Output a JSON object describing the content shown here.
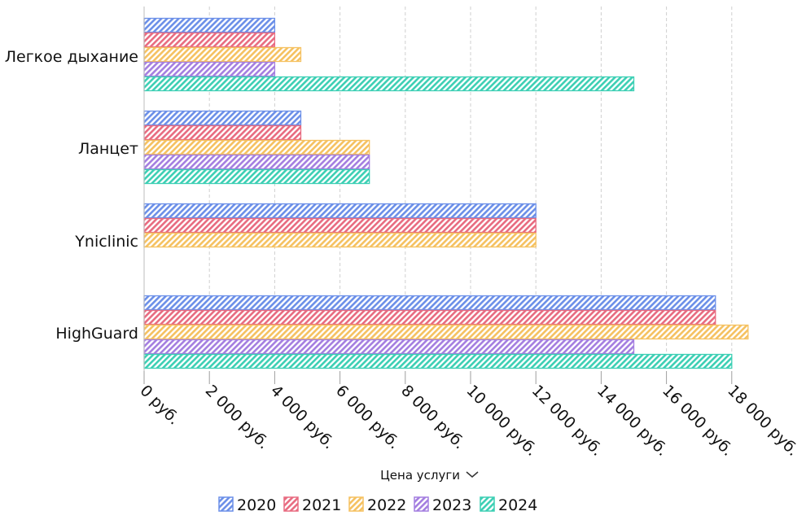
{
  "chart_data": {
    "type": "bar",
    "orientation": "horizontal",
    "categories": [
      "Легкое дыхание",
      "Ланцет",
      "Yniclinic",
      "HighGuard"
    ],
    "series": [
      {
        "name": "2020",
        "color": "#6b8fe8",
        "values": [
          4000,
          4800,
          12000,
          17500
        ]
      },
      {
        "name": "2021",
        "color": "#e86b80",
        "values": [
          4000,
          4800,
          12000,
          17500
        ]
      },
      {
        "name": "2022",
        "color": "#f5c160",
        "values": [
          4800,
          6900,
          12000,
          18500
        ]
      },
      {
        "name": "2023",
        "color": "#a47ee0",
        "values": [
          4000,
          6900,
          null,
          15000
        ]
      },
      {
        "name": "2024",
        "color": "#3ccfb4",
        "values": [
          15000,
          6900,
          null,
          18000
        ]
      }
    ],
    "xlabel": "Цена услуги",
    "xlim": [
      0,
      19000
    ],
    "ticks": [
      {
        "value": 0,
        "label": "0 руб."
      },
      {
        "value": 2000,
        "label": "2 000 руб."
      },
      {
        "value": 4000,
        "label": "4 000 руб."
      },
      {
        "value": 6000,
        "label": "6 000 руб."
      },
      {
        "value": 8000,
        "label": "8 000 руб."
      },
      {
        "value": 10000,
        "label": "10 000 руб."
      },
      {
        "value": 12000,
        "label": "12 000 руб."
      },
      {
        "value": 14000,
        "label": "14 000 руб."
      },
      {
        "value": 16000,
        "label": "16 000 руб."
      },
      {
        "value": 18000,
        "label": "18 000 руб."
      }
    ],
    "grid": true,
    "legend_position": "bottom",
    "axis_title_icon": "chevron-down-icon"
  }
}
